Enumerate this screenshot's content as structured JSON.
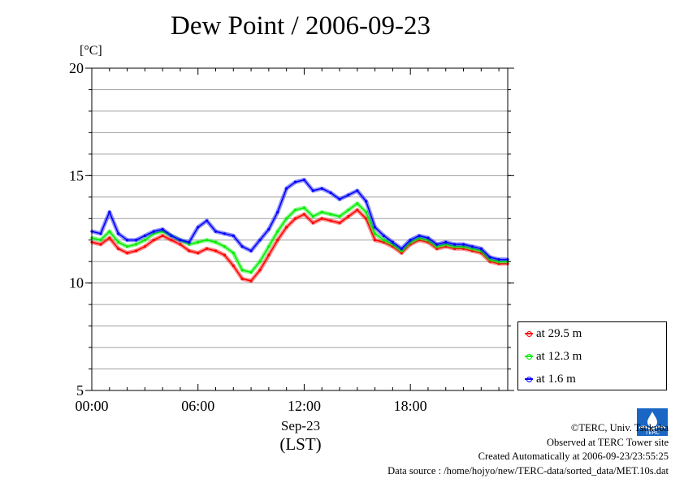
{
  "chart_data": {
    "type": "line",
    "title": "Dew Point / 2006-09-23",
    "ylabel": "[°C]",
    "xlabel": "Sep-23",
    "xlabel2": "(LST)",
    "xlim_hours": [
      0,
      23.5
    ],
    "ylim": [
      5,
      20
    ],
    "yticks": [
      5,
      10,
      15,
      20
    ],
    "xticks": [
      {
        "hour": 0,
        "label": "00:00"
      },
      {
        "hour": 6,
        "label": "06:00"
      },
      {
        "hour": 12,
        "label": "12:00"
      },
      {
        "hour": 18,
        "label": "18:00"
      }
    ],
    "grid": true,
    "legend_position": "right-bottom",
    "x": [
      0,
      0.5,
      1,
      1.5,
      2,
      2.5,
      3,
      3.5,
      4,
      4.5,
      5,
      5.5,
      6,
      6.5,
      7,
      7.5,
      8,
      8.5,
      9,
      9.5,
      10,
      10.5,
      11,
      11.5,
      12,
      12.5,
      13,
      13.5,
      14,
      14.5,
      15,
      15.5,
      16,
      16.5,
      17,
      17.5,
      18,
      18.5,
      19,
      19.5,
      20,
      20.5,
      21,
      21.5,
      22,
      22.5,
      23,
      23.5
    ],
    "series": [
      {
        "name": "at 29.5 m",
        "color": "#ff0000",
        "values": [
          11.9,
          11.8,
          12.1,
          11.6,
          11.4,
          11.5,
          11.7,
          12.0,
          12.2,
          12.0,
          11.8,
          11.5,
          11.4,
          11.6,
          11.5,
          11.3,
          10.8,
          10.2,
          10.1,
          10.6,
          11.3,
          12.0,
          12.6,
          13.0,
          13.2,
          12.8,
          13.0,
          12.9,
          12.8,
          13.1,
          13.4,
          13.0,
          12.0,
          11.9,
          11.7,
          11.4,
          11.8,
          12.0,
          11.9,
          11.6,
          11.7,
          11.6,
          11.6,
          11.5,
          11.4,
          11.0,
          10.9,
          10.9
        ]
      },
      {
        "name": "at 12.3 m",
        "color": "#00ee00",
        "values": [
          12.1,
          12.0,
          12.4,
          11.9,
          11.7,
          11.8,
          12.0,
          12.3,
          12.4,
          12.2,
          12.0,
          11.8,
          11.9,
          12.0,
          11.9,
          11.7,
          11.4,
          10.6,
          10.5,
          11.0,
          11.7,
          12.4,
          13.0,
          13.4,
          13.5,
          13.1,
          13.3,
          13.2,
          13.1,
          13.4,
          13.7,
          13.3,
          12.3,
          12.0,
          11.8,
          11.5,
          11.9,
          12.1,
          12.0,
          11.7,
          11.8,
          11.7,
          11.7,
          11.6,
          11.5,
          11.1,
          11.0,
          11.0
        ]
      },
      {
        "name": "at 1.6 m",
        "color": "#0000ff",
        "values": [
          12.4,
          12.3,
          13.3,
          12.3,
          12.0,
          12.0,
          12.2,
          12.4,
          12.5,
          12.2,
          12.0,
          11.9,
          12.6,
          12.9,
          12.4,
          12.3,
          12.2,
          11.7,
          11.5,
          12.0,
          12.5,
          13.3,
          14.4,
          14.7,
          14.8,
          14.3,
          14.4,
          14.2,
          13.9,
          14.1,
          14.3,
          13.8,
          12.6,
          12.2,
          11.9,
          11.6,
          12.0,
          12.2,
          12.1,
          11.8,
          11.9,
          11.8,
          11.8,
          11.7,
          11.6,
          11.2,
          11.1,
          11.1
        ]
      }
    ]
  },
  "credits": {
    "copyright": "©TERC, Univ. Tsukuba",
    "observed": "Observed at TERC Tower site",
    "created": "Created Automatically at 2006-09-23/23:55:25",
    "source": "Data source : /home/hojyo/new/TERC-data/sorted_data/MET.10s.dat"
  },
  "logo_text": "TERC"
}
